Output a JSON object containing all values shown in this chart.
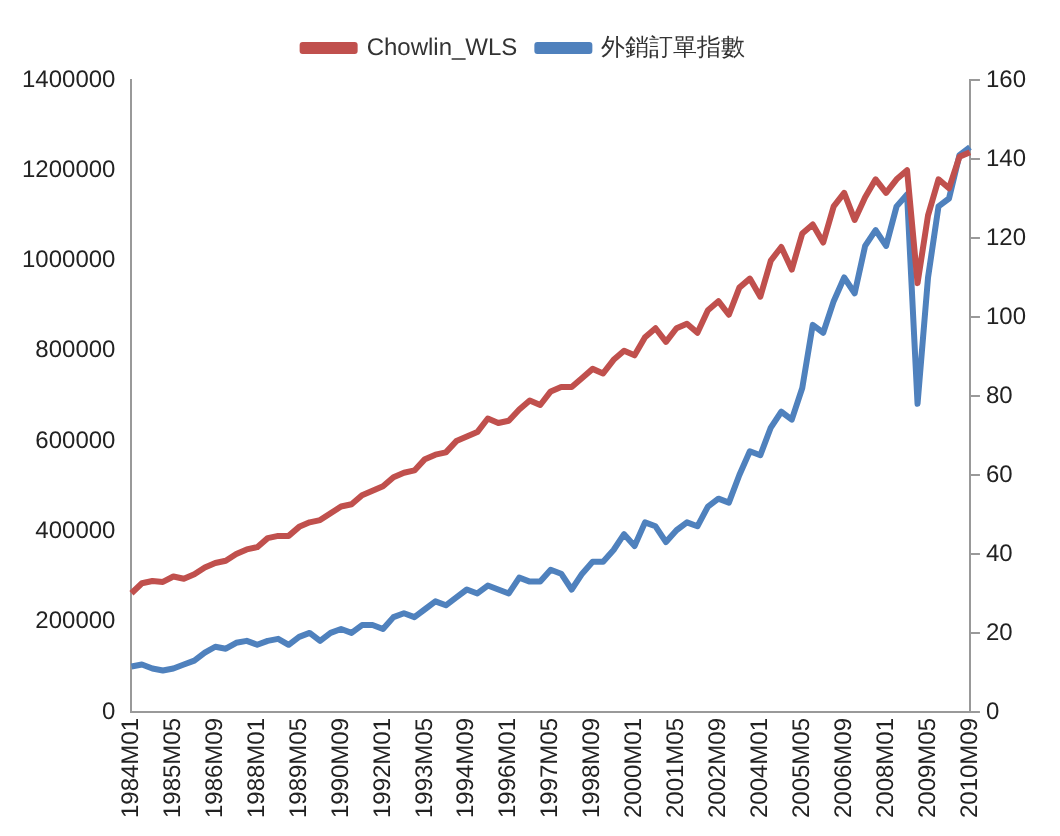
{
  "chart_data": {
    "type": "line",
    "categories": [
      "1984M01",
      null,
      null,
      null,
      "1985M05",
      null,
      null,
      null,
      "1986M09",
      null,
      null,
      null,
      "1988M01",
      null,
      null,
      null,
      "1989M05",
      null,
      null,
      null,
      "1990M09",
      null,
      null,
      null,
      "1992M01",
      null,
      null,
      null,
      "1993M05",
      null,
      null,
      null,
      "1994M09",
      null,
      null,
      null,
      "1996M01",
      null,
      null,
      null,
      "1997M05",
      null,
      null,
      null,
      "1998M09",
      null,
      null,
      null,
      "2000M01",
      null,
      null,
      null,
      "2001M05",
      null,
      null,
      null,
      "2002M09",
      null,
      null,
      null,
      "2004M01",
      null,
      null,
      null,
      "2005M05",
      null,
      null,
      null,
      "2006M09",
      null,
      null,
      null,
      "2008M01",
      null,
      null,
      null,
      "2009M05",
      null,
      null,
      null,
      "2010M09"
    ],
    "series": [
      {
        "name": "Chowlin_WLS",
        "color": "#c0504d",
        "values": [
          263000,
          285000,
          290000,
          288000,
          300000,
          295000,
          305000,
          320000,
          330000,
          335000,
          350000,
          360000,
          365000,
          385000,
          390000,
          390000,
          410000,
          420000,
          425000,
          440000,
          455000,
          460000,
          480000,
          490000,
          500000,
          520000,
          530000,
          535000,
          560000,
          570000,
          575000,
          600000,
          610000,
          620000,
          650000,
          640000,
          645000,
          670000,
          690000,
          680000,
          710000,
          720000,
          720000,
          740000,
          760000,
          750000,
          780000,
          800000,
          790000,
          830000,
          850000,
          820000,
          850000,
          860000,
          840000,
          890000,
          910000,
          880000,
          940000,
          960000,
          920000,
          1000000,
          1030000,
          980000,
          1060000,
          1080000,
          1040000,
          1120000,
          1150000,
          1090000,
          1140000,
          1180000,
          1150000,
          1180000,
          1200000,
          950000,
          1100000,
          1180000,
          1160000,
          1230000,
          1240000
        ]
      },
      {
        "name": "外銷訂單指數",
        "color": "#4f81bd",
        "axis": "y2",
        "values": [
          11.5,
          12,
          11,
          10.5,
          11,
          12,
          13,
          15,
          16.5,
          16,
          17.5,
          18,
          17,
          18,
          18.5,
          17,
          19,
          20,
          18,
          20,
          21,
          20,
          22,
          22,
          21,
          24,
          25,
          24,
          26,
          28,
          27,
          29,
          31,
          30,
          32,
          31,
          30,
          34,
          33,
          33,
          36,
          35,
          31,
          35,
          38,
          38,
          41,
          45,
          42,
          48,
          47,
          43,
          46,
          48,
          47,
          52,
          54,
          53,
          60,
          66,
          65,
          72,
          76,
          74,
          82,
          98,
          96,
          104,
          110,
          106,
          118,
          122,
          118,
          128,
          131,
          78,
          110,
          128,
          130,
          141,
          143
        ]
      }
    ],
    "ylim": [
      0,
      1400000
    ],
    "yticks": [
      0,
      200000,
      400000,
      600000,
      800000,
      1000000,
      1200000,
      1400000
    ],
    "y2lim": [
      0,
      160
    ],
    "y2ticks": [
      0,
      20,
      40,
      60,
      80,
      100,
      120,
      140,
      160
    ],
    "grid": false,
    "legend": "top",
    "marker": "none",
    "line_style": "solid"
  }
}
